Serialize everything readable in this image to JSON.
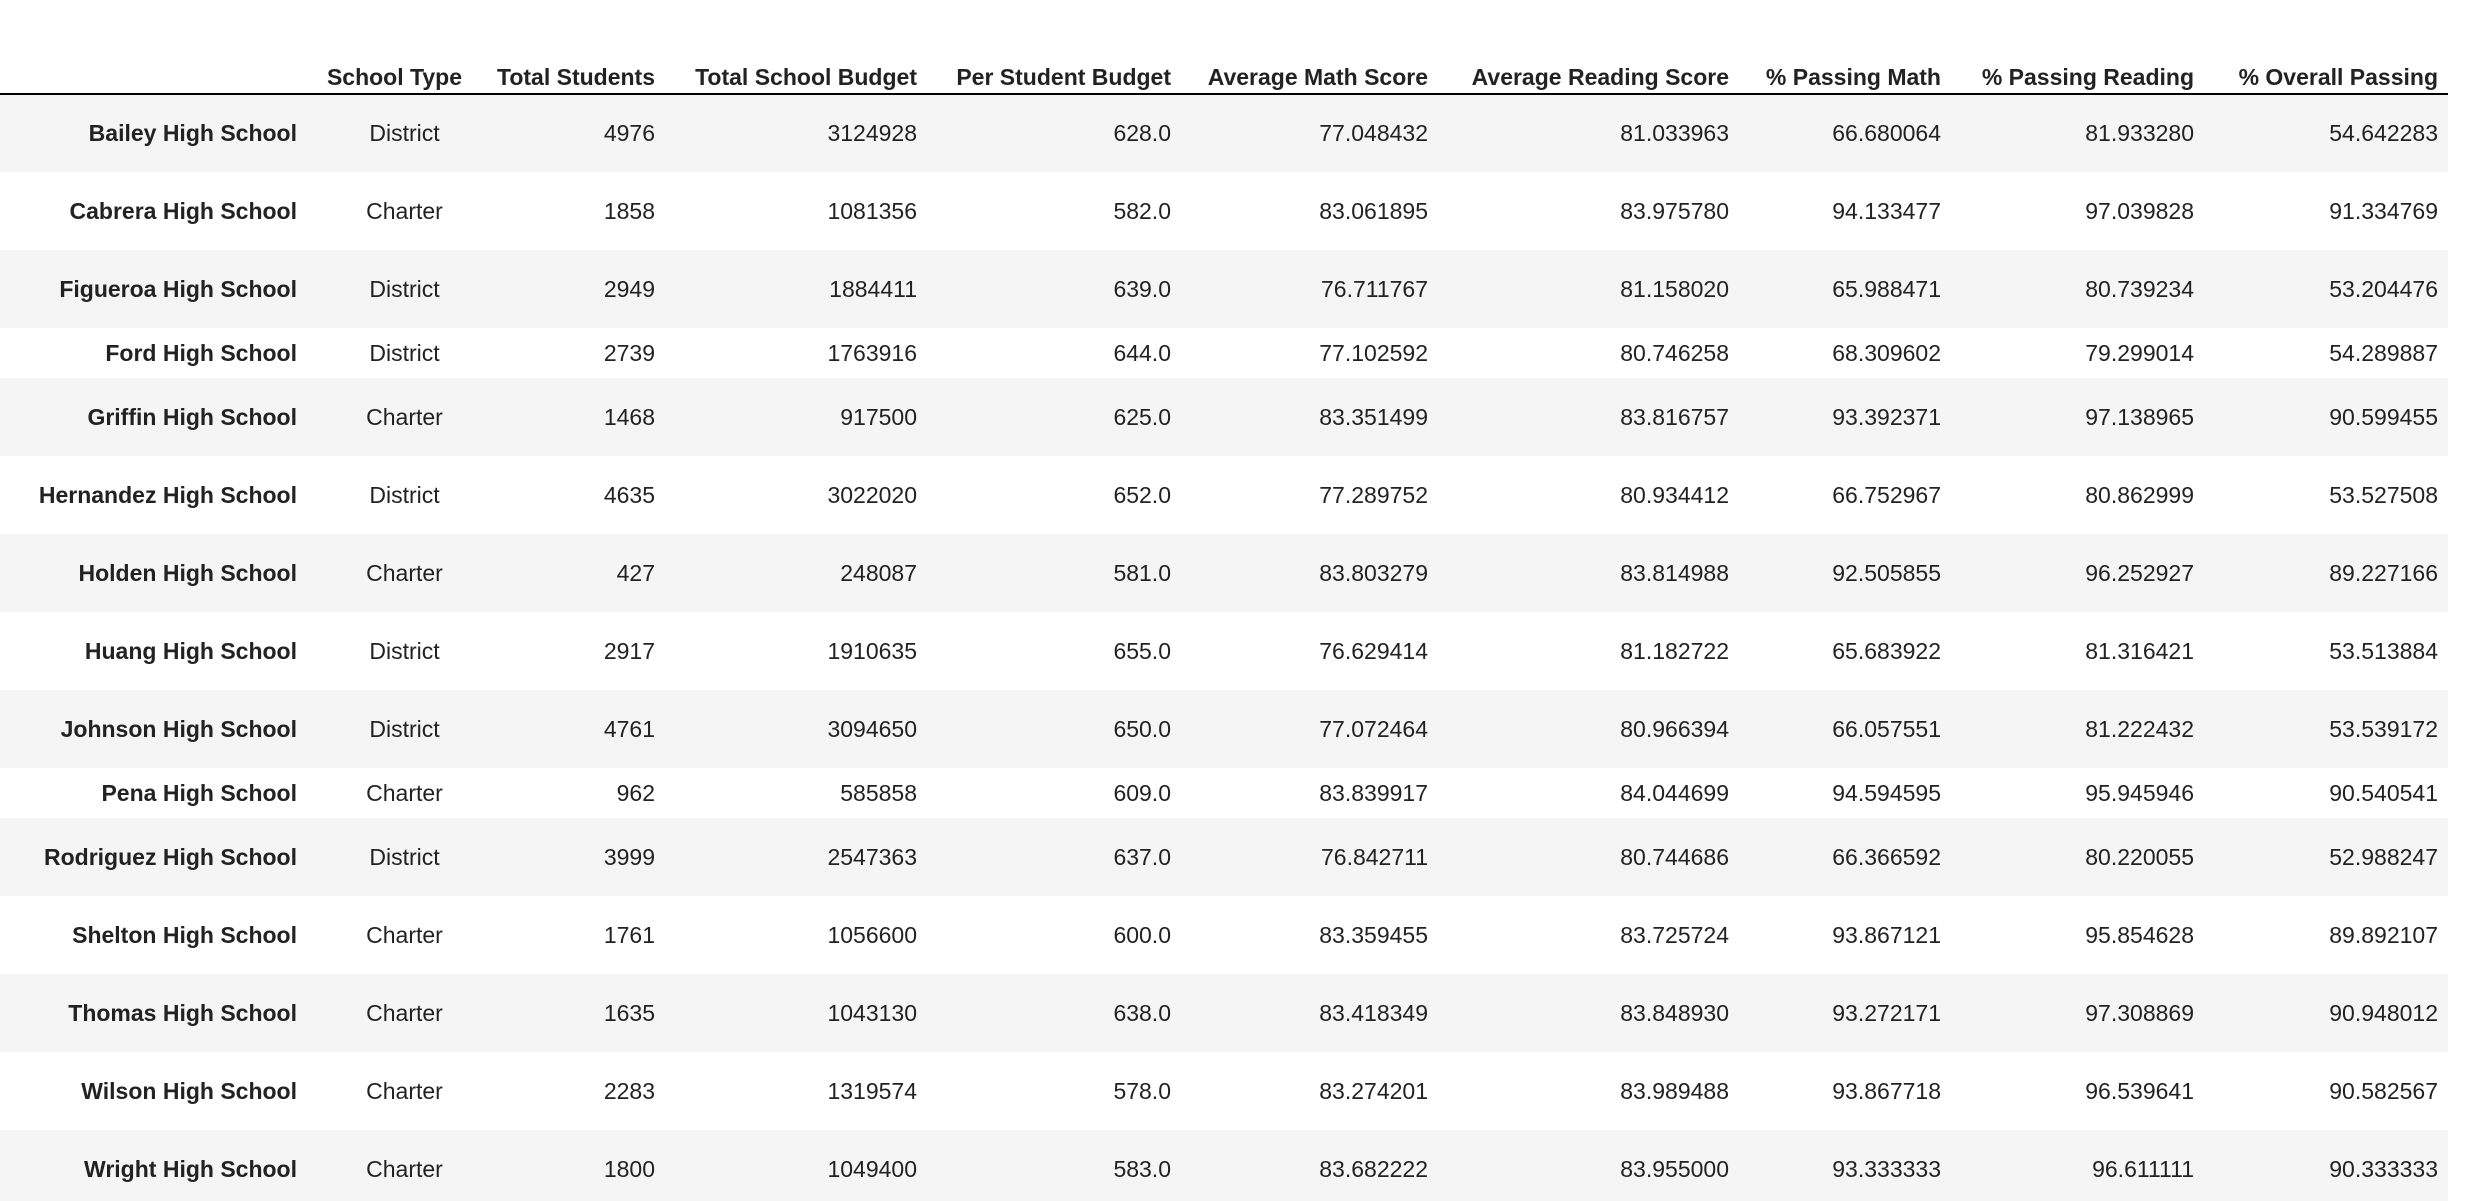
{
  "table": {
    "columns": [
      "School Type",
      "Total Students",
      "Total School Budget",
      "Per Student Budget",
      "Average Math Score",
      "Average Reading Score",
      "% Passing Math",
      "% Passing Reading",
      "% Overall Passing"
    ],
    "rows": [
      {
        "name": "Bailey High School",
        "cells": [
          "District",
          "4976",
          "3124928",
          "628.0",
          "77.048432",
          "81.033963",
          "66.680064",
          "81.933280",
          "54.642283"
        ]
      },
      {
        "name": "Cabrera High School",
        "cells": [
          "Charter",
          "1858",
          "1081356",
          "582.0",
          "83.061895",
          "83.975780",
          "94.133477",
          "97.039828",
          "91.334769"
        ]
      },
      {
        "name": "Figueroa High School",
        "cells": [
          "District",
          "2949",
          "1884411",
          "639.0",
          "76.711767",
          "81.158020",
          "65.988471",
          "80.739234",
          "53.204476"
        ]
      },
      {
        "name": "Ford High School",
        "cells": [
          "District",
          "2739",
          "1763916",
          "644.0",
          "77.102592",
          "80.746258",
          "68.309602",
          "79.299014",
          "54.289887"
        ]
      },
      {
        "name": "Griffin High School",
        "cells": [
          "Charter",
          "1468",
          "917500",
          "625.0",
          "83.351499",
          "83.816757",
          "93.392371",
          "97.138965",
          "90.599455"
        ]
      },
      {
        "name": "Hernandez High School",
        "cells": [
          "District",
          "4635",
          "3022020",
          "652.0",
          "77.289752",
          "80.934412",
          "66.752967",
          "80.862999",
          "53.527508"
        ]
      },
      {
        "name": "Holden High School",
        "cells": [
          "Charter",
          "427",
          "248087",
          "581.0",
          "83.803279",
          "83.814988",
          "92.505855",
          "96.252927",
          "89.227166"
        ]
      },
      {
        "name": "Huang High School",
        "cells": [
          "District",
          "2917",
          "1910635",
          "655.0",
          "76.629414",
          "81.182722",
          "65.683922",
          "81.316421",
          "53.513884"
        ]
      },
      {
        "name": "Johnson High School",
        "cells": [
          "District",
          "4761",
          "3094650",
          "650.0",
          "77.072464",
          "80.966394",
          "66.057551",
          "81.222432",
          "53.539172"
        ]
      },
      {
        "name": "Pena High School",
        "cells": [
          "Charter",
          "962",
          "585858",
          "609.0",
          "83.839917",
          "84.044699",
          "94.594595",
          "95.945946",
          "90.540541"
        ]
      },
      {
        "name": "Rodriguez High School",
        "cells": [
          "District",
          "3999",
          "2547363",
          "637.0",
          "76.842711",
          "80.744686",
          "66.366592",
          "80.220055",
          "52.988247"
        ]
      },
      {
        "name": "Shelton High School",
        "cells": [
          "Charter",
          "1761",
          "1056600",
          "600.0",
          "83.359455",
          "83.725724",
          "93.867121",
          "95.854628",
          "89.892107"
        ]
      },
      {
        "name": "Thomas High School",
        "cells": [
          "Charter",
          "1635",
          "1043130",
          "638.0",
          "83.418349",
          "83.848930",
          "93.272171",
          "97.308869",
          "90.948012"
        ]
      },
      {
        "name": "Wilson High School",
        "cells": [
          "Charter",
          "2283",
          "1319574",
          "578.0",
          "83.274201",
          "83.989488",
          "93.867718",
          "96.539641",
          "90.582567"
        ]
      },
      {
        "name": "Wright High School",
        "cells": [
          "Charter",
          "1800",
          "1049400",
          "583.0",
          "83.682222",
          "83.955000",
          "93.333333",
          "96.611111",
          "90.333333"
        ]
      }
    ]
  }
}
